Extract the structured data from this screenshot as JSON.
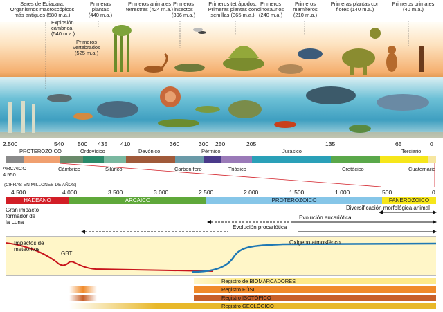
{
  "organism_labels": [
    {
      "id": "ediacara",
      "text": "Seres de Ediacara.\nOrganismos macroscópicos\nmás antiguos (580 m.a.)"
    },
    {
      "id": "explosion",
      "text": "Explosión\ncámbrica\n(540 m.a.)"
    },
    {
      "id": "vertebrados",
      "text": "Primeros\nvertebrados\n(525 m.a.)"
    },
    {
      "id": "plantas",
      "text": "Primeras\nplantas\n(440 m.a.)"
    },
    {
      "id": "animales-terrestres",
      "text": "Primeros animales\nterrestres (424 m.a.)"
    },
    {
      "id": "insectos",
      "text": "Primeros\ninsectos\n(396 m.a.)"
    },
    {
      "id": "tetrapodos",
      "text": "Primeros tetrápodos.\nPrimeras plantas con\nsemillas (365 m.a.)"
    },
    {
      "id": "dinosaurios",
      "text": "Primeros\ndinosaurios\n(240 m.a.)"
    },
    {
      "id": "mamiferos",
      "text": "Primeros\nmamíferos\n(210 m.a.)"
    },
    {
      "id": "plantas-flores",
      "text": "Primeras plantas con\nflores (140 m.a.)"
    },
    {
      "id": "primates",
      "text": "Primeros primates\n(40 m.a.)"
    }
  ],
  "upper_ticks": [
    "2.500",
    "540",
    "500",
    "435",
    "410",
    "360",
    "300",
    "250",
    "205",
    "135",
    "65",
    "0"
  ],
  "upper_eras_top": [
    "PROTEROZOICO",
    "Ordovícico",
    "Devónico",
    "Pérmico",
    "Jurásico",
    "Terciario"
  ],
  "upper_eras_bottom": [
    "Cámbrico",
    "Silúrico",
    "Carbonífero",
    "Triásico",
    "Cretácico",
    "Cuaternario"
  ],
  "arcaico_label": "ARCAICO\n4.550",
  "units_label": "(CIFRAS EN MILLONES DE AÑOS)",
  "lower_ticks": [
    "4.500",
    "4.000",
    "3.500",
    "3.000",
    "2.500",
    "2.000",
    "1.500",
    "1.000",
    "500",
    "0"
  ],
  "eons": [
    "HADEANO",
    "ARCAICO",
    "PROTEROZOICO",
    "FANEROZOICO"
  ],
  "events": {
    "impacto": "Gran impacto\nformador de\nla Luna",
    "diversificacion": "Diversificación morfológica animal",
    "eucariotica": "Evolución eucariótica",
    "procariotica": "Evolución procariótica"
  },
  "graph": {
    "impactos": "Impactos de\nmeteoritos",
    "gbt": "GBT",
    "oxigeno": "Oxígeno atmosférico"
  },
  "registros": [
    "Registro de BIOMARCADORES",
    "Registro FÓSIL",
    "Registro ISOTÓPICO",
    "Registro GEOLÓGICO"
  ],
  "colors": {
    "hadeano": "#d21e26",
    "arcaico": "#5fa83a",
    "proterozoico": "#86c6e8",
    "fanerozoico": "#f6e61a",
    "curve_red": "#c8141c",
    "curve_blue": "#1f78b4",
    "graph_bg": "#fff6c8"
  }
}
